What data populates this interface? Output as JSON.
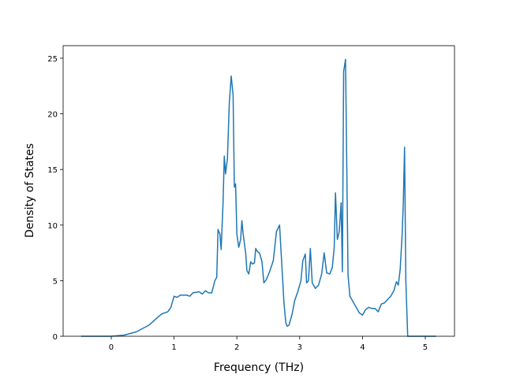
{
  "chart_data": {
    "type": "line",
    "xlabel": "Frequency (THz)",
    "ylabel": "Density of States",
    "x": [
      -0.48,
      0,
      0.2,
      0.4,
      0.6,
      0.7,
      0.8,
      0.9,
      0.95,
      1.0,
      1.05,
      1.1,
      1.2,
      1.25,
      1.3,
      1.4,
      1.45,
      1.5,
      1.55,
      1.6,
      1.65,
      1.68,
      1.7,
      1.73,
      1.75,
      1.78,
      1.8,
      1.82,
      1.85,
      1.88,
      1.91,
      1.94,
      1.96,
      1.98,
      2.0,
      2.03,
      2.06,
      2.08,
      2.1,
      2.14,
      2.16,
      2.19,
      2.22,
      2.25,
      2.28,
      2.3,
      2.33,
      2.36,
      2.4,
      2.43,
      2.47,
      2.52,
      2.58,
      2.63,
      2.68,
      2.72,
      2.75,
      2.78,
      2.8,
      2.83,
      2.88,
      2.92,
      2.97,
      3.02,
      3.05,
      3.09,
      3.11,
      3.14,
      3.17,
      3.2,
      3.25,
      3.3,
      3.35,
      3.39,
      3.43,
      3.48,
      3.52,
      3.55,
      3.57,
      3.6,
      3.63,
      3.66,
      3.68,
      3.7,
      3.73,
      3.77,
      3.8,
      3.85,
      3.9,
      3.95,
      4.0,
      4.05,
      4.1,
      4.15,
      4.2,
      4.25,
      4.3,
      4.35,
      4.4,
      4.45,
      4.5,
      4.54,
      4.57,
      4.6,
      4.63,
      4.65,
      4.67,
      4.69,
      4.72,
      4.8,
      5.17
    ],
    "series": [
      {
        "name": "DOS",
        "color": "#1f77b4",
        "values": [
          0,
          0,
          0.1,
          0.4,
          1.0,
          1.5,
          2.0,
          2.2,
          2.6,
          3.6,
          3.5,
          3.7,
          3.7,
          3.6,
          3.9,
          4.0,
          3.8,
          4.1,
          3.9,
          3.9,
          5.0,
          5.3,
          9.6,
          9.2,
          7.8,
          12,
          16.2,
          14.6,
          16,
          21,
          23.4,
          21.7,
          13.4,
          13.7,
          9.2,
          8.0,
          8.7,
          10.4,
          9.2,
          7.5,
          5.9,
          5.6,
          6.7,
          6.5,
          6.6,
          7.9,
          7.6,
          7.5,
          6.7,
          4.8,
          5.1,
          5.8,
          6.8,
          9.4,
          10.0,
          6.0,
          3.0,
          1.2,
          0.9,
          1.0,
          2.0,
          3.2,
          4.0,
          5.0,
          6.8,
          7.4,
          4.8,
          5.0,
          7.9,
          4.8,
          4.3,
          4.6,
          5.6,
          7.5,
          5.7,
          5.6,
          6.2,
          8.0,
          12.9,
          8.7,
          9.4,
          12.0,
          5.8,
          23.8,
          24.9,
          5.5,
          3.6,
          3.1,
          2.6,
          2.1,
          1.9,
          2.4,
          2.6,
          2.5,
          2.5,
          2.2,
          2.9,
          3.0,
          3.3,
          3.6,
          4.1,
          4.9,
          4.6,
          6.0,
          9.0,
          12.0,
          17.0,
          5.0,
          0,
          0,
          0
        ]
      }
    ],
    "xlim": [
      -0.766,
      5.465
    ],
    "ylim": [
      0,
      26.13
    ],
    "xticks": [
      0,
      1,
      2,
      3,
      4,
      5
    ],
    "yticks": [
      0,
      5,
      10,
      15,
      20,
      25
    ]
  }
}
